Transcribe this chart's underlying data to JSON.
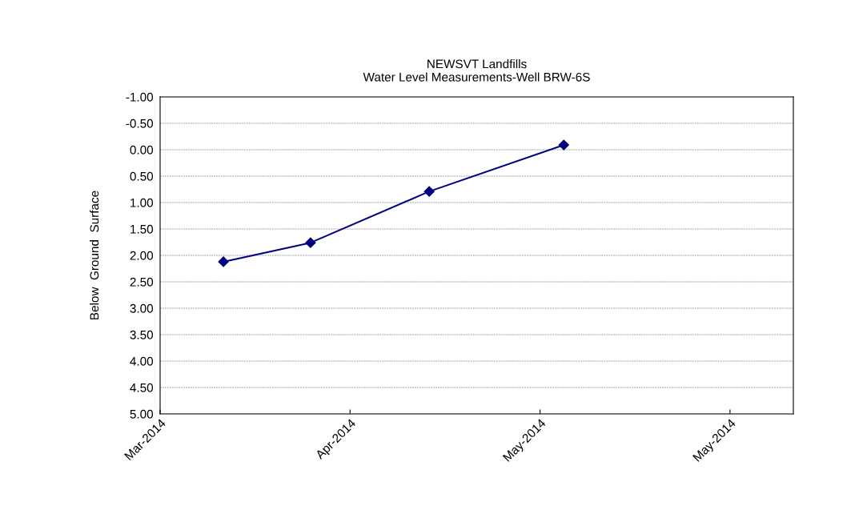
{
  "chart_data": {
    "type": "line",
    "title": "NEWSVT Landfills\nWater Level Measurements-Well BRW-6S",
    "ylabel": "Below  Ground  Surface",
    "x": [
      "2014-03-23",
      "2014-04-03",
      "2014-04-18",
      "2014-05-05"
    ],
    "series": [
      {
        "color": "#000080",
        "values": [
          2.12,
          1.76,
          0.79,
          -0.09
        ]
      }
    ],
    "xlim": [
      "2014-03-15",
      "2014-06-03"
    ],
    "xticks": [
      {
        "value": "2014-03-15",
        "label": "Mar-2014"
      },
      {
        "value": "2014-04-08",
        "label": "Apr-2014"
      },
      {
        "value": "2014-05-02",
        "label": "May-2014"
      },
      {
        "value": "2014-05-26",
        "label": "May-2014"
      }
    ],
    "ylim": [
      5.0,
      -1.0
    ],
    "yticks": [
      {
        "value": -1.0,
        "label": "-1.00"
      },
      {
        "value": -0.5,
        "label": "-0.50"
      },
      {
        "value": 0.0,
        "label": "0.00"
      },
      {
        "value": 0.5,
        "label": "0.50"
      },
      {
        "value": 1.0,
        "label": "1.00"
      },
      {
        "value": 1.5,
        "label": "1.50"
      },
      {
        "value": 2.0,
        "label": "2.00"
      },
      {
        "value": 2.5,
        "label": "2.50"
      },
      {
        "value": 3.0,
        "label": "3.00"
      },
      {
        "value": 3.5,
        "label": "3.50"
      },
      {
        "value": 4.0,
        "label": "4.00"
      },
      {
        "value": 4.5,
        "label": "4.50"
      },
      {
        "value": 5.0,
        "label": "5.00"
      }
    ],
    "grid": "y",
    "marker": "diamond",
    "line_style": "solid",
    "legend": false
  }
}
